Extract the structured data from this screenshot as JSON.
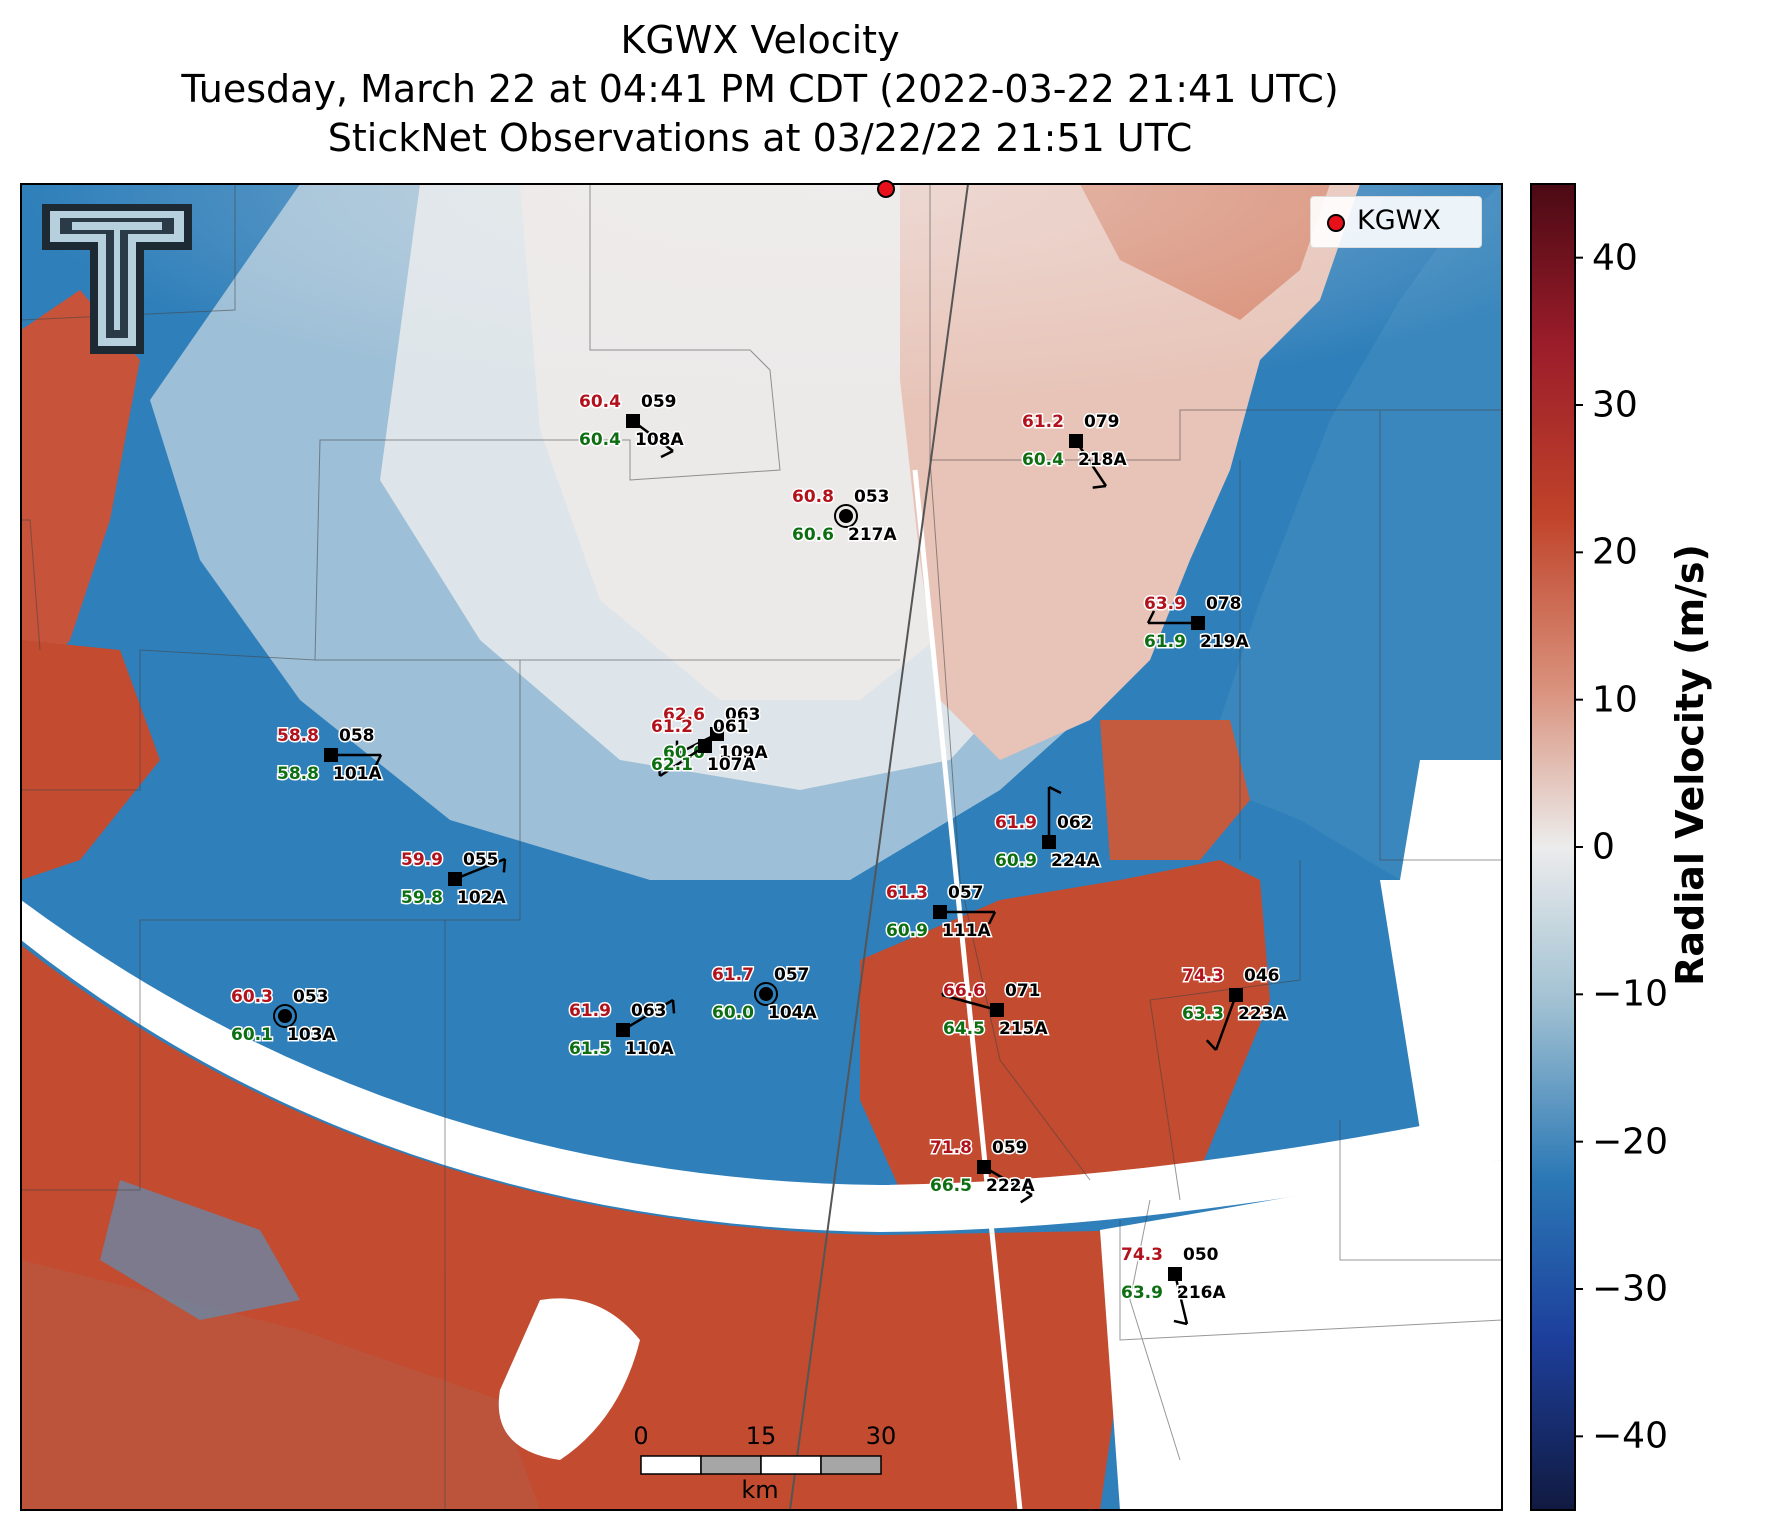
{
  "title": {
    "line1": "KGWX Velocity",
    "line2": "Tuesday, March 22 at 04:41 PM CDT (2022-03-22 21:41 UTC)",
    "line3": "StickNet Observations at 03/22/22 21:51 UTC"
  },
  "legend": {
    "label": "KGWX",
    "color": "#e8101a"
  },
  "colorbar": {
    "label": "Radial Velocity (m/s)",
    "range": [
      -45,
      45
    ],
    "ticks": [
      "40",
      "30",
      "20",
      "10",
      "0",
      "−10",
      "−20",
      "−30",
      "−40"
    ],
    "colors": {
      "max": "#4a0a14",
      "pos_mid": "#c0432a",
      "pos_low": "#e6b7a8",
      "zero": "#ececec",
      "neg_low": "#9fc0d2",
      "neg_mid": "#2b78b5",
      "min": "#111a40"
    }
  },
  "scale_bar": {
    "ticks": [
      "0",
      "15",
      "30"
    ],
    "unit": "km"
  },
  "logo": {
    "name": "texas-tech-double-t-logo"
  },
  "stations": [
    {
      "id": "108A",
      "temp": "60.4",
      "dew": "60.4",
      "pres": "059"
    },
    {
      "id": "217A",
      "temp": "60.8",
      "dew": "60.6",
      "pres": "053"
    },
    {
      "id": "218A",
      "temp": "61.2",
      "dew": "60.4",
      "pres": "079"
    },
    {
      "id": "219A",
      "temp": "63.9",
      "dew": "61.9",
      "pres": "078"
    },
    {
      "id": "101A",
      "temp": "58.8",
      "dew": "58.8",
      "pres": "058"
    },
    {
      "id": "109A",
      "temp": "62.6",
      "dew": "60.0",
      "pres": "063"
    },
    {
      "id": "107A",
      "temp": "61.2",
      "dew": "62.1",
      "pres": "061"
    },
    {
      "id": "224A",
      "temp": "61.9",
      "dew": "60.9",
      "pres": "062"
    },
    {
      "id": "102A",
      "temp": "59.9",
      "dew": "59.8",
      "pres": "055"
    },
    {
      "id": "111A",
      "temp": "61.3",
      "dew": "60.9",
      "pres": "057"
    },
    {
      "id": "103A",
      "temp": "60.3",
      "dew": "60.1",
      "pres": "053"
    },
    {
      "id": "110A",
      "temp": "61.9",
      "dew": "61.5",
      "pres": "063"
    },
    {
      "id": "104A",
      "temp": "61.7",
      "dew": "60.0",
      "pres": "057"
    },
    {
      "id": "215A",
      "temp": "66.6",
      "dew": "64.5",
      "pres": "071"
    },
    {
      "id": "223A",
      "temp": "74.3",
      "dew": "63.3",
      "pres": "046"
    },
    {
      "id": "222A",
      "temp": "71.8",
      "dew": "66.5",
      "pres": "059"
    },
    {
      "id": "216A",
      "temp": "74.3",
      "dew": "63.9",
      "pres": "050"
    }
  ]
}
